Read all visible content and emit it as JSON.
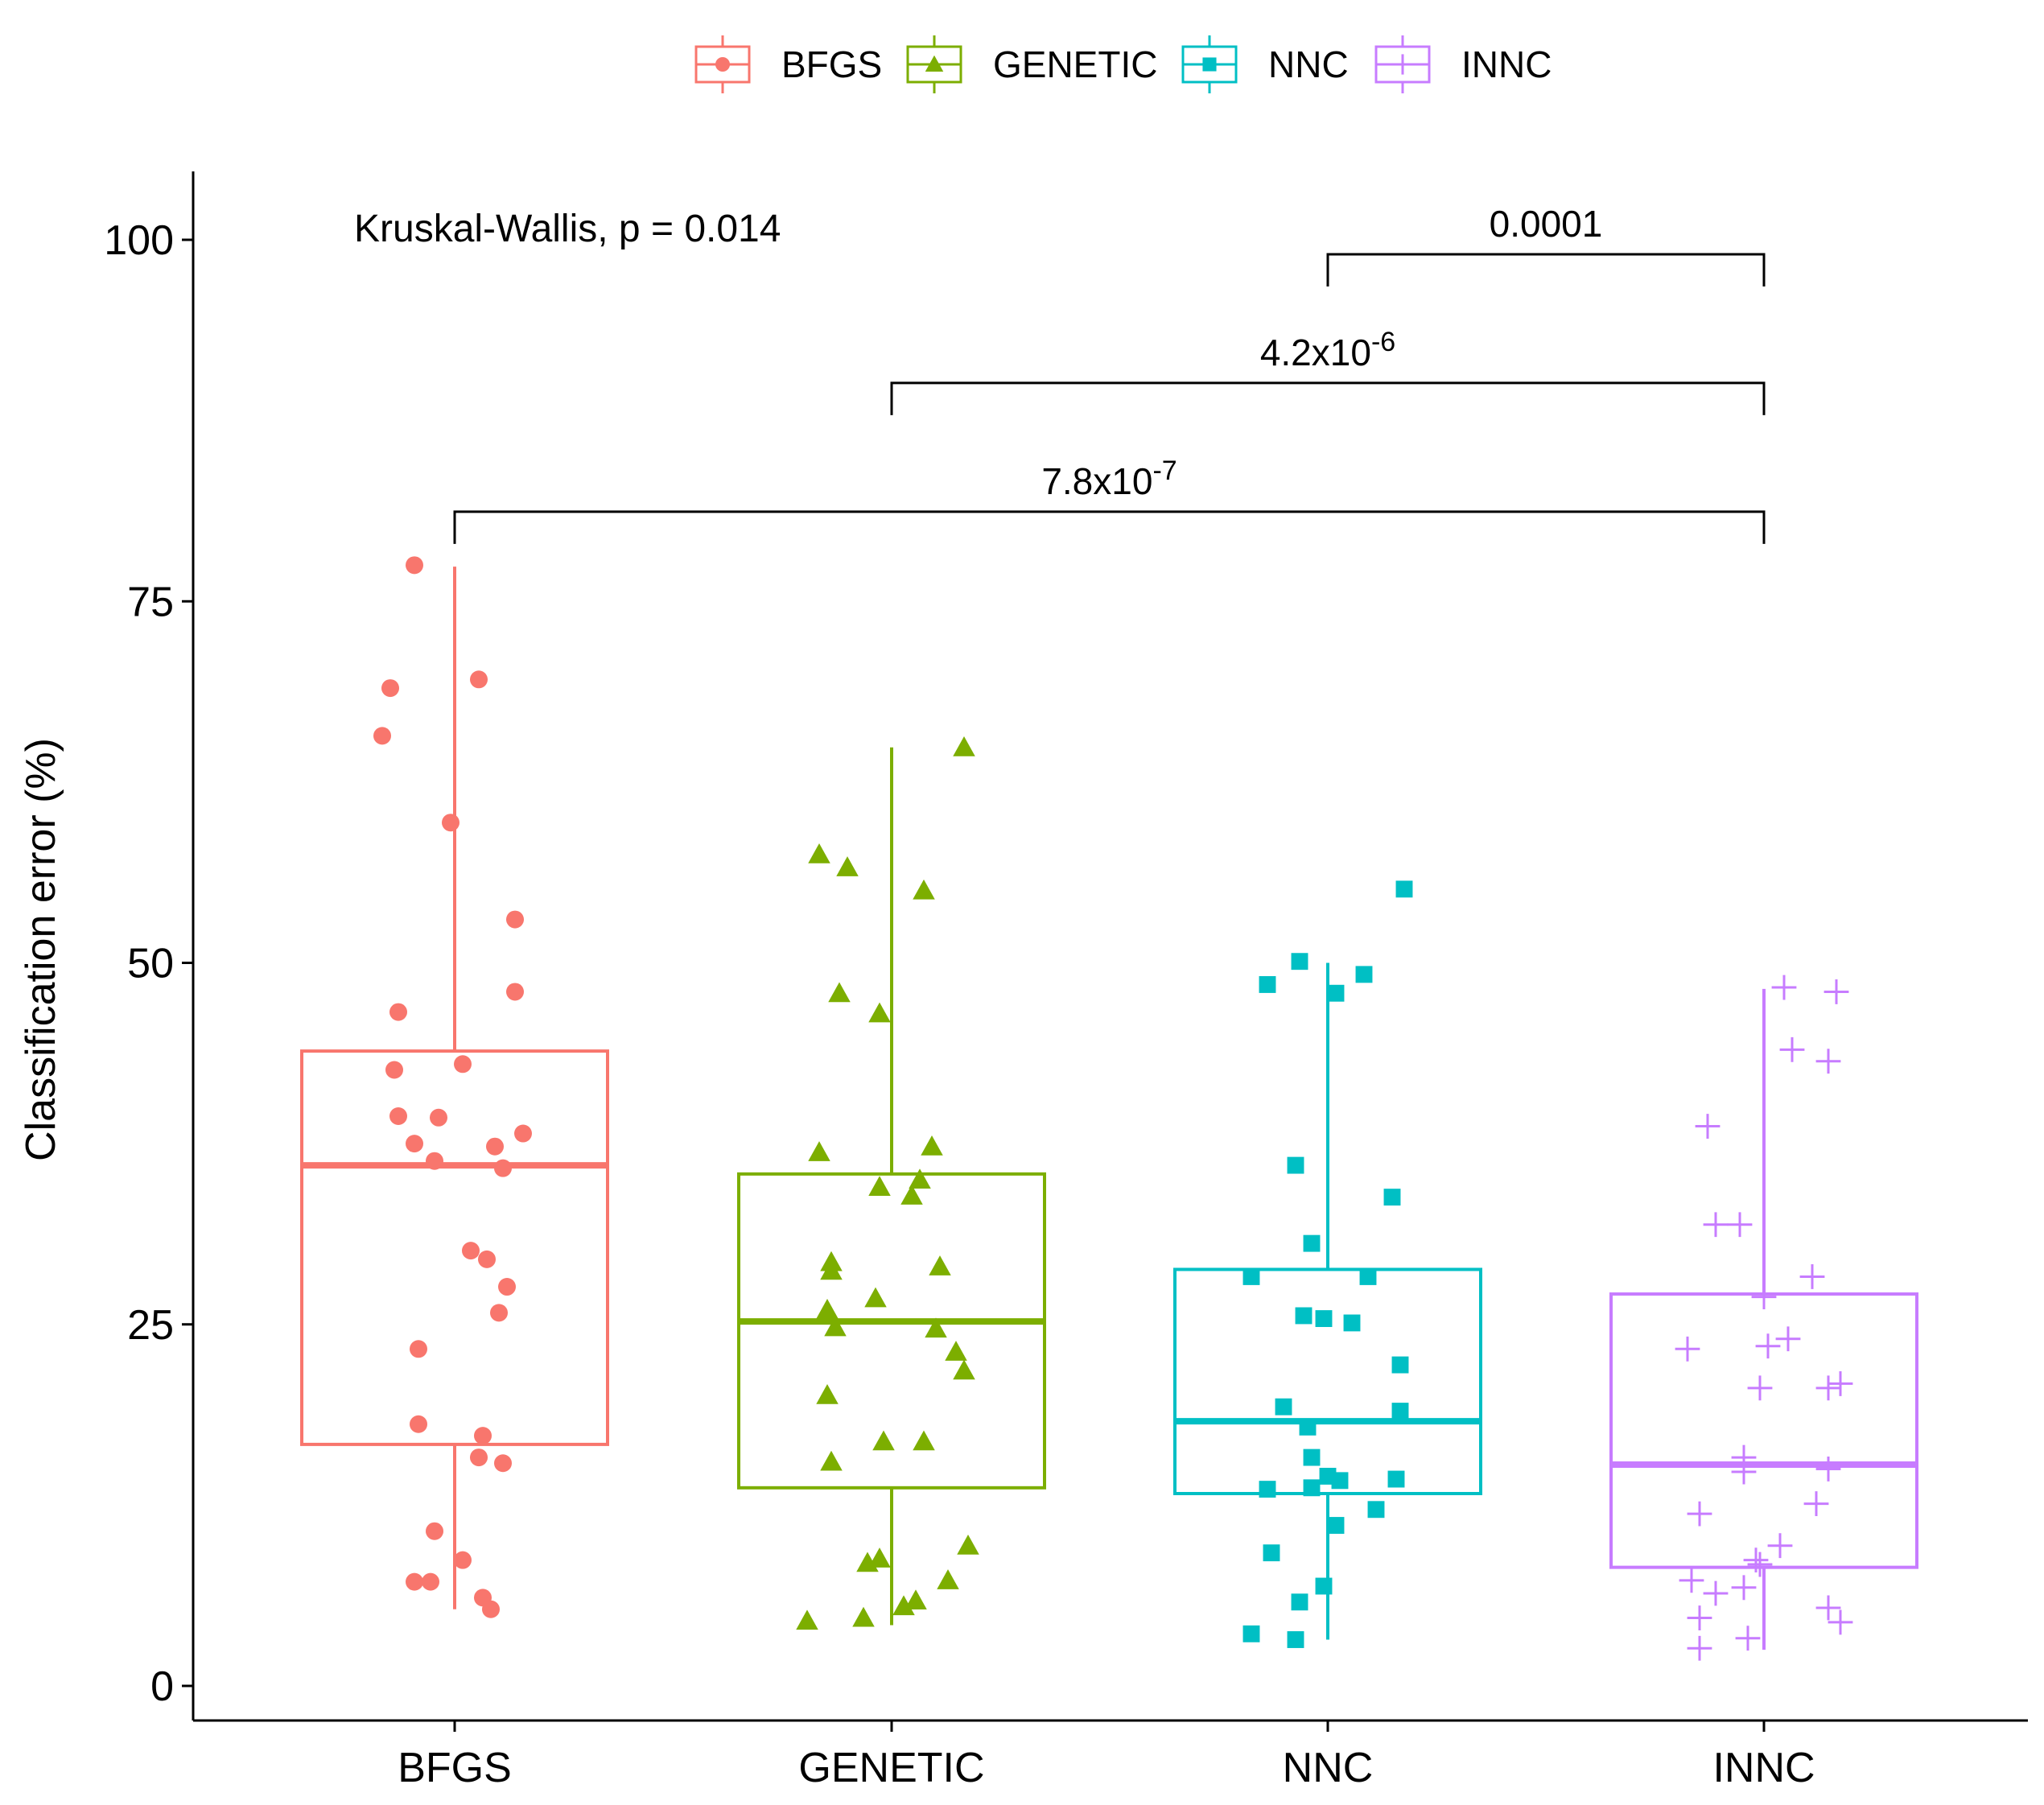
{
  "chart_data": {
    "type": "boxplot",
    "ylabel": "Classification error (%)",
    "xlabel": "",
    "ylim": [
      -5,
      105
    ],
    "yticks": [
      0,
      25,
      50,
      75,
      100
    ],
    "legend_position": "top",
    "annotation": "Kruskal-Wallis, p = 0.014",
    "categories": [
      "BFGS",
      "GENETIC",
      "NNC",
      "INNC"
    ],
    "groups": [
      {
        "name": "BFGS",
        "color": "#F8766D",
        "shape": "circle",
        "box": {
          "min": 5.3,
          "q1": 16.7,
          "median": 36.0,
          "q3": 43.9,
          "max": 77.4
        },
        "points": [
          {
            "dx": -0.1,
            "y": 77.5
          },
          {
            "dx": -0.16,
            "y": 69.0
          },
          {
            "dx": 0.06,
            "y": 69.6
          },
          {
            "dx": -0.18,
            "y": 65.7
          },
          {
            "dx": -0.01,
            "y": 59.7
          },
          {
            "dx": 0.15,
            "y": 53.0
          },
          {
            "dx": -0.14,
            "y": 46.6
          },
          {
            "dx": 0.15,
            "y": 48.0
          },
          {
            "dx": -0.15,
            "y": 42.6
          },
          {
            "dx": 0.02,
            "y": 43.0
          },
          {
            "dx": -0.14,
            "y": 39.4
          },
          {
            "dx": -0.04,
            "y": 39.3
          },
          {
            "dx": -0.1,
            "y": 37.5
          },
          {
            "dx": 0.1,
            "y": 37.3
          },
          {
            "dx": 0.17,
            "y": 38.2
          },
          {
            "dx": -0.05,
            "y": 36.3
          },
          {
            "dx": 0.12,
            "y": 35.8
          },
          {
            "dx": 0.04,
            "y": 30.1
          },
          {
            "dx": 0.08,
            "y": 29.5
          },
          {
            "dx": 0.13,
            "y": 27.6
          },
          {
            "dx": 0.11,
            "y": 25.8
          },
          {
            "dx": -0.09,
            "y": 23.3
          },
          {
            "dx": -0.09,
            "y": 18.1
          },
          {
            "dx": 0.07,
            "y": 17.3
          },
          {
            "dx": 0.06,
            "y": 15.8
          },
          {
            "dx": 0.12,
            "y": 15.4
          },
          {
            "dx": -0.05,
            "y": 10.7
          },
          {
            "dx": 0.02,
            "y": 8.7
          },
          {
            "dx": -0.1,
            "y": 7.2
          },
          {
            "dx": -0.06,
            "y": 7.2
          },
          {
            "dx": 0.07,
            "y": 6.1
          },
          {
            "dx": 0.09,
            "y": 5.3
          }
        ]
      },
      {
        "name": "GENETIC",
        "color": "#7CAE00",
        "shape": "triangle",
        "box": {
          "min": 4.2,
          "q1": 13.7,
          "median": 25.2,
          "q3": 35.4,
          "max": 64.9
        },
        "points": [
          {
            "dx": 0.18,
            "y": 64.9
          },
          {
            "dx": -0.18,
            "y": 57.5
          },
          {
            "dx": -0.11,
            "y": 56.6
          },
          {
            "dx": 0.08,
            "y": 55.0
          },
          {
            "dx": -0.13,
            "y": 47.9
          },
          {
            "dx": -0.03,
            "y": 46.5
          },
          {
            "dx": -0.18,
            "y": 36.9
          },
          {
            "dx": 0.1,
            "y": 37.3
          },
          {
            "dx": -0.03,
            "y": 34.5
          },
          {
            "dx": 0.07,
            "y": 35.0
          },
          {
            "dx": 0.05,
            "y": 33.9
          },
          {
            "dx": -0.15,
            "y": 29.3
          },
          {
            "dx": -0.15,
            "y": 28.7
          },
          {
            "dx": 0.12,
            "y": 29.0
          },
          {
            "dx": -0.04,
            "y": 26.8
          },
          {
            "dx": -0.16,
            "y": 26.0
          },
          {
            "dx": -0.14,
            "y": 24.8
          },
          {
            "dx": 0.11,
            "y": 24.7
          },
          {
            "dx": 0.16,
            "y": 23.1
          },
          {
            "dx": 0.18,
            "y": 21.8
          },
          {
            "dx": -0.16,
            "y": 20.1
          },
          {
            "dx": -0.02,
            "y": 16.9
          },
          {
            "dx": 0.08,
            "y": 16.9
          },
          {
            "dx": -0.15,
            "y": 15.5
          },
          {
            "dx": 0.19,
            "y": 9.7
          },
          {
            "dx": -0.06,
            "y": 8.5
          },
          {
            "dx": -0.03,
            "y": 8.8
          },
          {
            "dx": 0.14,
            "y": 7.3
          },
          {
            "dx": 0.06,
            "y": 5.9
          },
          {
            "dx": 0.03,
            "y": 5.5
          },
          {
            "dx": -0.21,
            "y": 4.5
          },
          {
            "dx": -0.07,
            "y": 4.7
          }
        ]
      },
      {
        "name": "NNC",
        "color": "#00BFC4",
        "shape": "square",
        "box": {
          "min": 3.2,
          "q1": 13.3,
          "median": 18.3,
          "q3": 28.8,
          "max": 50.0
        },
        "points": [
          {
            "dx": 0.19,
            "y": 55.1
          },
          {
            "dx": -0.07,
            "y": 50.1
          },
          {
            "dx": -0.15,
            "y": 48.5
          },
          {
            "dx": 0.02,
            "y": 47.9
          },
          {
            "dx": 0.09,
            "y": 49.2
          },
          {
            "dx": -0.08,
            "y": 36.0
          },
          {
            "dx": 0.16,
            "y": 33.8
          },
          {
            "dx": -0.04,
            "y": 30.6
          },
          {
            "dx": -0.19,
            "y": 28.3
          },
          {
            "dx": 0.1,
            "y": 28.3
          },
          {
            "dx": -0.06,
            "y": 25.6
          },
          {
            "dx": -0.01,
            "y": 25.4
          },
          {
            "dx": 0.06,
            "y": 25.1
          },
          {
            "dx": 0.18,
            "y": 22.2
          },
          {
            "dx": -0.11,
            "y": 19.3
          },
          {
            "dx": 0.18,
            "y": 19.0
          },
          {
            "dx": -0.05,
            "y": 17.9
          },
          {
            "dx": -0.04,
            "y": 15.8
          },
          {
            "dx": 0.0,
            "y": 14.5
          },
          {
            "dx": 0.03,
            "y": 14.2
          },
          {
            "dx": 0.17,
            "y": 14.3
          },
          {
            "dx": -0.15,
            "y": 13.6
          },
          {
            "dx": -0.04,
            "y": 13.7
          },
          {
            "dx": 0.12,
            "y": 12.2
          },
          {
            "dx": 0.02,
            "y": 11.1
          },
          {
            "dx": -0.14,
            "y": 9.2
          },
          {
            "dx": -0.01,
            "y": 6.9
          },
          {
            "dx": -0.07,
            "y": 5.8
          },
          {
            "dx": -0.19,
            "y": 3.6
          },
          {
            "dx": -0.08,
            "y": 3.2
          }
        ]
      },
      {
        "name": "INNC",
        "color": "#C77CFF",
        "shape": "cross",
        "box": {
          "min": 2.5,
          "q1": 8.2,
          "median": 15.3,
          "q3": 27.1,
          "max": 48.2
        },
        "points": [
          {
            "dx": 0.05,
            "y": 48.3
          },
          {
            "dx": 0.18,
            "y": 48.0
          },
          {
            "dx": 0.07,
            "y": 44.0
          },
          {
            "dx": 0.16,
            "y": 43.2
          },
          {
            "dx": -0.14,
            "y": 38.7
          },
          {
            "dx": -0.12,
            "y": 31.9
          },
          {
            "dx": -0.06,
            "y": 31.9
          },
          {
            "dx": 0.12,
            "y": 28.3
          },
          {
            "dx": 0.0,
            "y": 26.9
          },
          {
            "dx": 0.06,
            "y": 24.0
          },
          {
            "dx": -0.19,
            "y": 23.3
          },
          {
            "dx": 0.01,
            "y": 23.5
          },
          {
            "dx": -0.01,
            "y": 20.6
          },
          {
            "dx": 0.16,
            "y": 20.6
          },
          {
            "dx": 0.19,
            "y": 20.9
          },
          {
            "dx": -0.05,
            "y": 15.8
          },
          {
            "dx": -0.05,
            "y": 14.8
          },
          {
            "dx": 0.16,
            "y": 15.0
          },
          {
            "dx": 0.13,
            "y": 12.6
          },
          {
            "dx": -0.16,
            "y": 11.9
          },
          {
            "dx": 0.04,
            "y": 9.7
          },
          {
            "dx": -0.01,
            "y": 8.4
          },
          {
            "dx": -0.02,
            "y": 8.7
          },
          {
            "dx": -0.18,
            "y": 7.3
          },
          {
            "dx": -0.12,
            "y": 6.4
          },
          {
            "dx": -0.05,
            "y": 6.8
          },
          {
            "dx": 0.16,
            "y": 5.4
          },
          {
            "dx": 0.19,
            "y": 4.4
          },
          {
            "dx": -0.16,
            "y": 4.7
          },
          {
            "dx": -0.04,
            "y": 3.3
          },
          {
            "dx": -0.16,
            "y": 2.6
          }
        ]
      }
    ],
    "comparisons": [
      {
        "from": "NNC",
        "to": "INNC",
        "y": 99.0,
        "label": "0.0001",
        "label_base": "",
        "label_exp": ""
      },
      {
        "from": "GENETIC",
        "to": "INNC",
        "y": 90.1,
        "label": "",
        "label_base": "4.2x10",
        "label_exp": "-6"
      },
      {
        "from": "BFGS",
        "to": "INNC",
        "y": 81.2,
        "label": "",
        "label_base": "7.8x10",
        "label_exp": "-7"
      }
    ]
  }
}
